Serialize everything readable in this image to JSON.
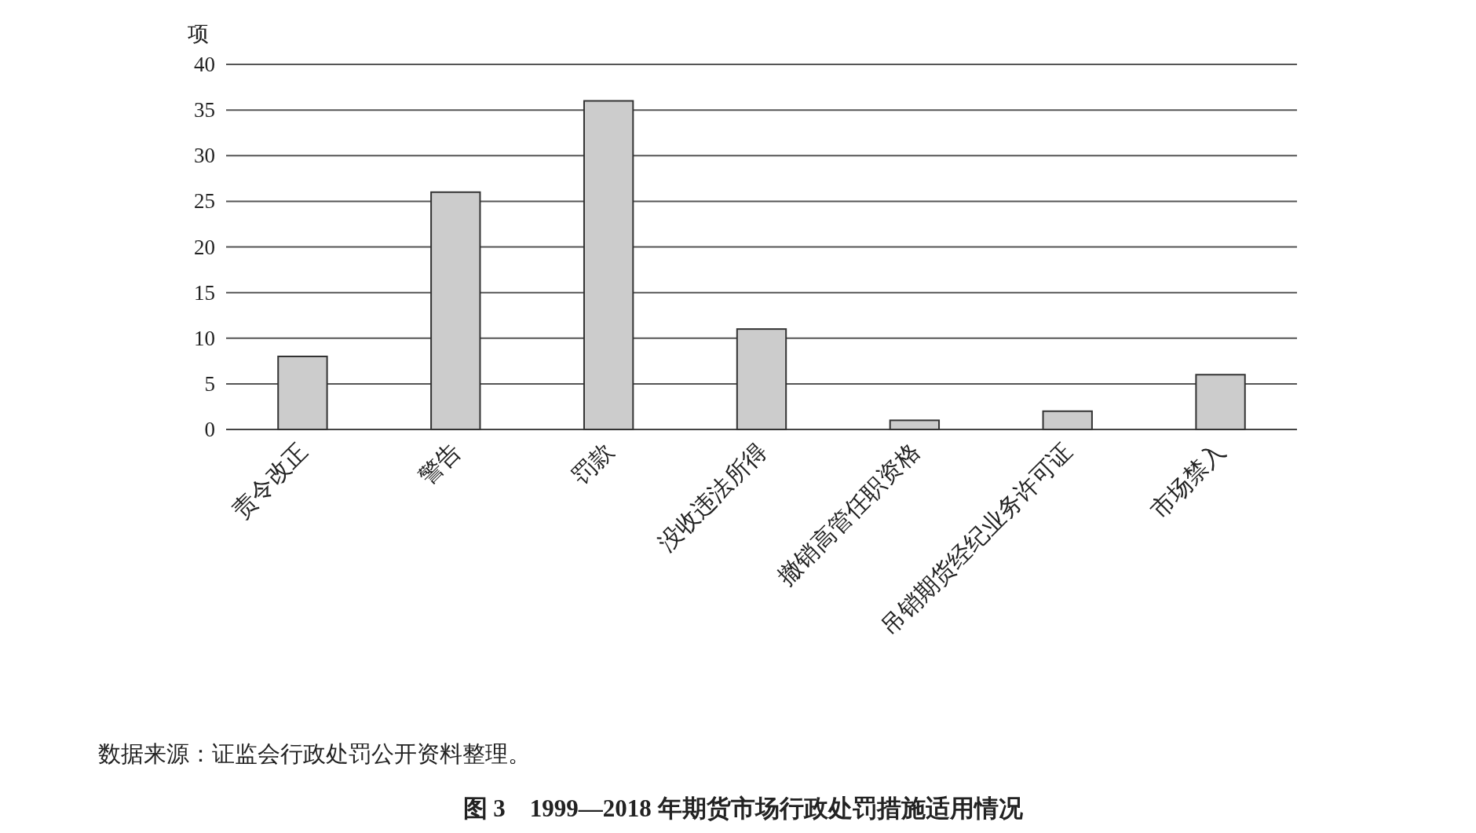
{
  "chart_data": {
    "type": "bar",
    "title": "图 3　1999—2018 年期货市场行政处罚措施适用情况",
    "ylabel": "项",
    "categories": [
      "责令改正",
      "警告",
      "罚款",
      "没收违法所得",
      "撤销高管任职资格",
      "吊销期货经纪业务许可证",
      "市场禁入"
    ],
    "values": [
      8,
      26,
      36,
      11,
      1,
      2,
      6
    ],
    "color": "#cccccc",
    "ylim": [
      0,
      40
    ],
    "yticks": [
      0,
      5,
      10,
      15,
      20,
      25,
      30,
      35,
      40
    ],
    "grid": "y",
    "annotations": [
      "数据来源：证监会行政处罚公开资料整理。"
    ]
  }
}
